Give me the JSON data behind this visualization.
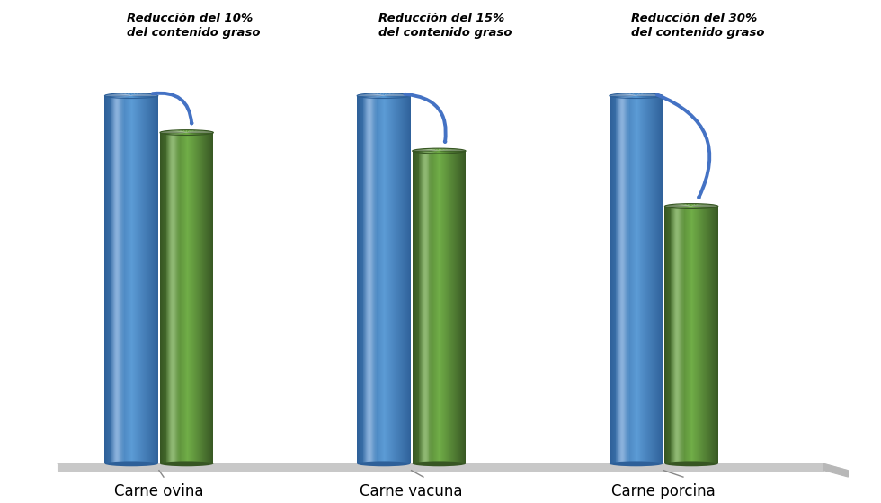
{
  "categories": [
    "Carne ovina",
    "Carne vacuna",
    "Carne porcina"
  ],
  "blue_values": [
    10,
    10,
    10
  ],
  "green_values": [
    9.0,
    8.5,
    7.0
  ],
  "blue_main": "#5B9BD5",
  "blue_shadow": "#2E6099",
  "blue_highlight": "#A8C8EC",
  "green_main": "#70AD47",
  "green_shadow": "#375623",
  "green_highlight": "#A9D18E",
  "annotations": [
    "Reducción del 10%\ndel contenido graso",
    "Reducción del 15%\ndel contenido graso",
    "Reducción del 30%\ndel contenido graso"
  ],
  "background_color": "#FFFFFF",
  "floor_color": "#E0E0E0",
  "floor_edge": "#AAAAAA",
  "label_fontsize": 12,
  "annotation_fontsize": 9.5,
  "ylim": [
    0,
    13
  ],
  "group_positions": [
    1.6,
    4.2,
    6.8
  ],
  "bar_width": 0.55,
  "bar_gap": 0.02,
  "bar_floor": 0.5,
  "arrow_color": "#4472C4"
}
